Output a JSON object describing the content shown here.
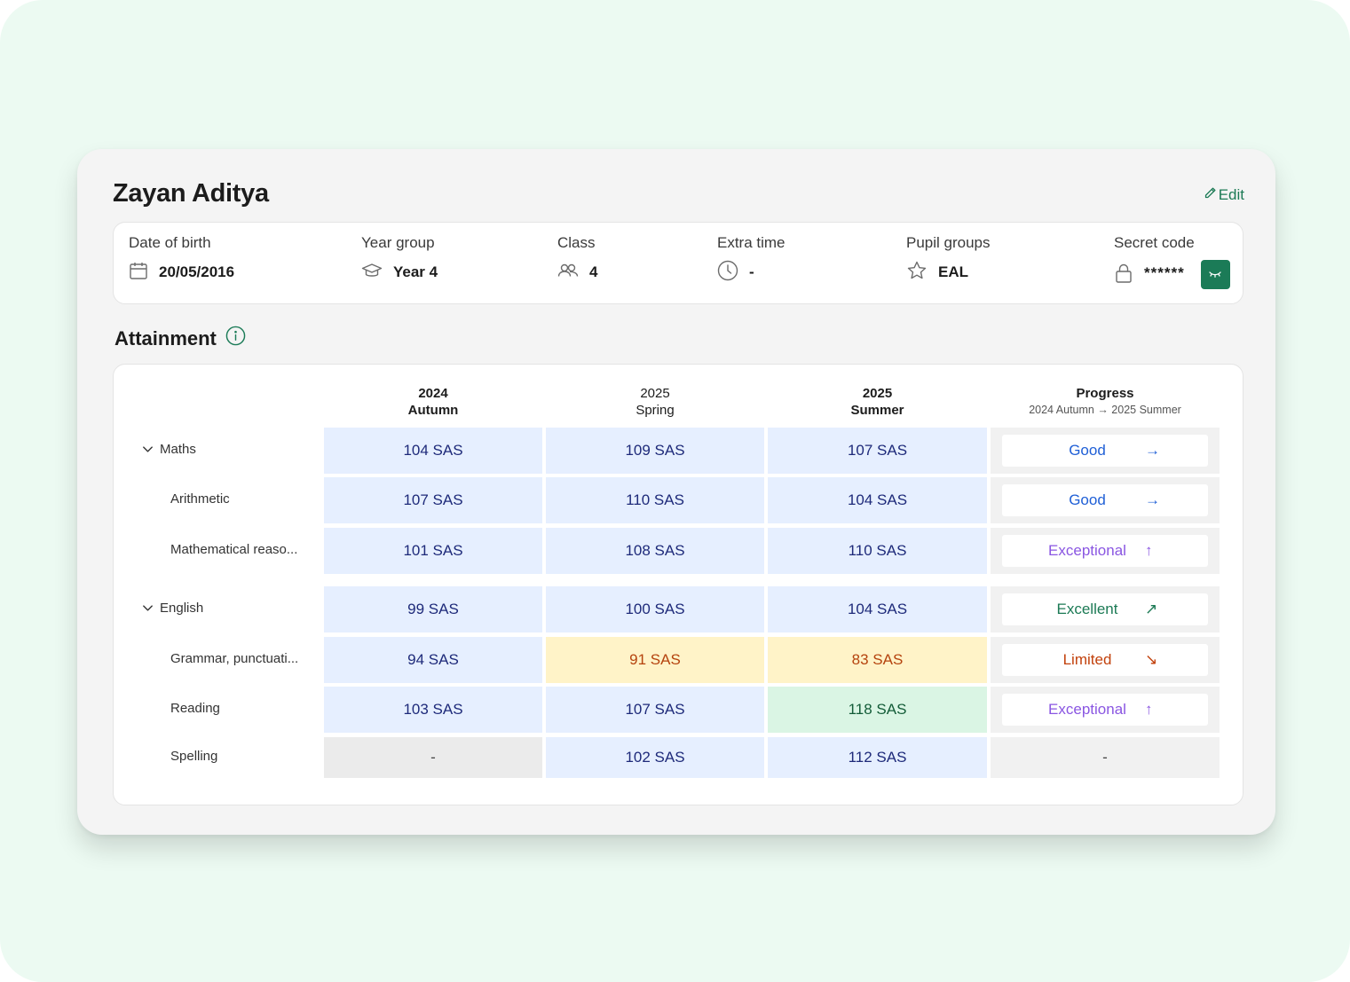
{
  "pupil": {
    "name": "Zayan Aditya",
    "edit_label": "Edit"
  },
  "info": [
    {
      "label": "Date of birth",
      "value": "20/05/2016",
      "icon": "calendar-icon"
    },
    {
      "label": "Year group",
      "value": "Year 4",
      "icon": "graduation-cap-icon"
    },
    {
      "label": "Class",
      "value": "4",
      "icon": "people-icon"
    },
    {
      "label": "Extra time",
      "value": "-",
      "icon": "clock-icon"
    },
    {
      "label": "Pupil groups",
      "value": "EAL",
      "icon": "star-icon"
    },
    {
      "label": "Secret code",
      "value": "******",
      "icon": "lock-icon"
    }
  ],
  "attainment": {
    "title": "Attainment",
    "columns": [
      {
        "line1": "2024",
        "line2": "Autumn"
      },
      {
        "line1": "2025",
        "line2": "Spring"
      },
      {
        "line1": "2025",
        "line2": "Summer"
      },
      {
        "line1": "Progress",
        "line2": "2024 Autumn → 2025 Summer"
      }
    ],
    "rows": [
      {
        "label": "Maths",
        "group": true,
        "cells": [
          "104 SAS",
          "109 SAS",
          "107 SAS"
        ],
        "progress": "Good",
        "arrow": "→"
      },
      {
        "label": "Arithmetic",
        "group": false,
        "cells": [
          "107 SAS",
          "110 SAS",
          "104 SAS"
        ],
        "progress": "Good",
        "arrow": "→"
      },
      {
        "label": "Mathematical reaso...",
        "group": false,
        "cells": [
          "101 SAS",
          "108 SAS",
          "110 SAS"
        ],
        "progress": "Exceptional",
        "arrow": "↑"
      },
      {
        "label": "English",
        "group": true,
        "cells": [
          "99 SAS",
          "100 SAS",
          "104 SAS"
        ],
        "progress": "Excellent",
        "arrow": "↗"
      },
      {
        "label": "Grammar, punctuati...",
        "group": false,
        "cells": [
          "94 SAS",
          "91 SAS",
          "83 SAS"
        ],
        "progress": "Limited",
        "arrow": "↘"
      },
      {
        "label": "Reading",
        "group": false,
        "cells": [
          "103 SAS",
          "107 SAS",
          "118 SAS"
        ],
        "progress": "Exceptional",
        "arrow": "↑"
      },
      {
        "label": "Spelling",
        "group": false,
        "cells": [
          "-",
          "102 SAS",
          "112 SAS"
        ],
        "progress": "-",
        "arrow": ""
      }
    ]
  },
  "colors": {
    "good": "#1f5fd6",
    "exceptional": "#8a56e2",
    "excellent": "#1c7a55",
    "limited": "#c2410c",
    "accent_green": "#1b7b57"
  }
}
